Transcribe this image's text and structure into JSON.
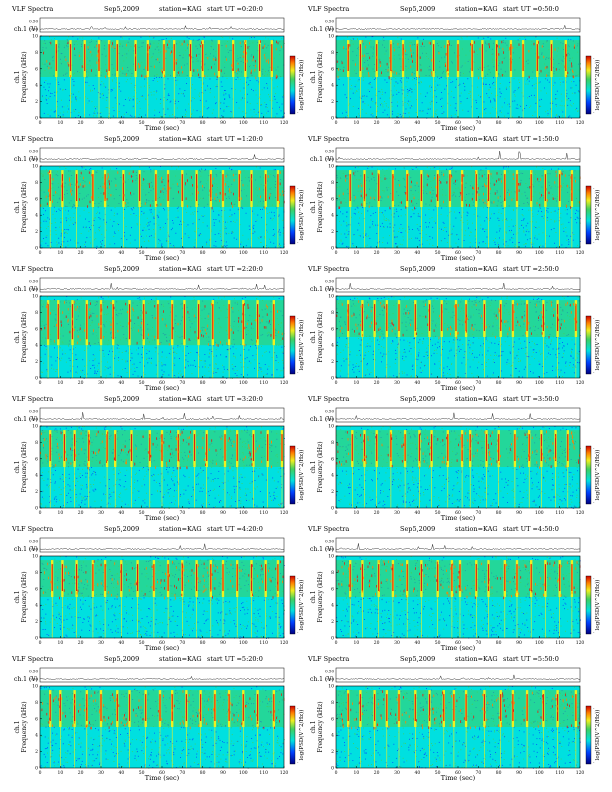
{
  "chart_data": [
    {
      "type": "heatmap",
      "title": "VLF Spectra",
      "date": "Sep5,2009",
      "station": "station=KAG",
      "start": "start UT =0:20:0",
      "channel_label": "ch.1",
      "wave_ylabel": "(V)",
      "wave_ticks": [
        "0.00",
        "0.50"
      ],
      "ylabel": "Frequency (kHz)",
      "xlabel": "Time (sec)",
      "xlim": [
        0,
        120
      ],
      "ylim": [
        0,
        10
      ],
      "xticks": [
        0,
        10,
        20,
        30,
        40,
        50,
        60,
        70,
        80,
        90,
        100,
        110,
        120
      ],
      "yticks": [
        0,
        2,
        4,
        6,
        8,
        10
      ],
      "colorbar_label": "log(PSD(V^2/Hz))",
      "colorbar_ticks": [
        "-",
        "-"
      ],
      "active_band_khz": [
        5,
        9.5
      ],
      "bursts": [
        8,
        15,
        22,
        29,
        34,
        38,
        47,
        53,
        61,
        66,
        74,
        80,
        88,
        95,
        101,
        108,
        114
      ]
    },
    {
      "type": "heatmap",
      "title": "VLF Spectra",
      "date": "Sep5,2009",
      "station": "station=KAG",
      "start": "start UT =0:50:0",
      "channel_label": "ch.1",
      "wave_ylabel": "(V)",
      "wave_ticks": [
        "0.00",
        "0.50"
      ],
      "ylabel": "Frequency (kHz)",
      "xlabel": "Time (sec)",
      "xlim": [
        0,
        120
      ],
      "ylim": [
        0,
        10
      ],
      "xticks": [
        0,
        10,
        20,
        30,
        40,
        50,
        60,
        70,
        80,
        90,
        100,
        110,
        120
      ],
      "yticks": [
        0,
        2,
        4,
        6,
        8,
        10
      ],
      "colorbar_label": "log(PSD(V^2/Hz))",
      "colorbar_ticks": [
        "-",
        "-"
      ],
      "active_band_khz": [
        5,
        9.5
      ],
      "bursts": [
        6,
        12,
        20,
        27,
        33,
        40,
        48,
        55,
        60,
        67,
        72,
        79,
        86,
        92,
        99,
        106,
        113
      ]
    },
    {
      "type": "heatmap",
      "title": "VLF Spectra",
      "date": "Sep5,2009",
      "station": "station=KAG",
      "start": "start UT =1:20:0",
      "channel_label": "ch.1",
      "wave_ylabel": "(V)",
      "wave_ticks": [
        "0.00",
        "0.50"
      ],
      "ylabel": "Frequency (kHz)",
      "xlabel": "Time (sec)",
      "xlim": [
        0,
        120
      ],
      "ylim": [
        0,
        10
      ],
      "xticks": [
        0,
        10,
        20,
        30,
        40,
        50,
        60,
        70,
        80,
        90,
        100,
        110,
        120
      ],
      "yticks": [
        0,
        2,
        4,
        6,
        8,
        10
      ],
      "colorbar_label": "log(PSD(V^2/Hz))",
      "colorbar_ticks": [
        "-",
        "-"
      ],
      "active_band_khz": [
        5,
        9.5
      ],
      "bursts": [
        5,
        11,
        18,
        26,
        32,
        41,
        49,
        57,
        63,
        70,
        77,
        84,
        90,
        98,
        104,
        111,
        117
      ]
    },
    {
      "type": "heatmap",
      "title": "VLF Spectra",
      "date": "Sep5,2009",
      "station": "station=KAG",
      "start": "start UT =1:50:0",
      "channel_label": "ch.1",
      "wave_ylabel": "(V)",
      "wave_ticks": [
        "0.00",
        "0.50"
      ],
      "ylabel": "Frequency (kHz)",
      "xlabel": "Time (sec)",
      "xlim": [
        0,
        120
      ],
      "ylim": [
        0,
        10
      ],
      "xticks": [
        0,
        10,
        20,
        30,
        40,
        50,
        60,
        70,
        80,
        90,
        100,
        110,
        120
      ],
      "yticks": [
        0,
        2,
        4,
        6,
        8,
        10
      ],
      "colorbar_label": "log(PSD(V^2/Hz))",
      "colorbar_ticks": [
        "-",
        "-"
      ],
      "active_band_khz": [
        5,
        9.5
      ],
      "bursts": [
        7,
        14,
        21,
        28,
        35,
        42,
        50,
        56,
        62,
        69,
        75,
        83,
        89,
        96,
        103,
        110,
        116
      ]
    },
    {
      "type": "heatmap",
      "title": "VLF Spectra",
      "date": "Sep5,2009",
      "station": "station=KAG",
      "start": "start UT =2:20:0",
      "channel_label": "ch.1",
      "wave_ylabel": "(V)",
      "wave_ticks": [
        "0.00",
        "0.50"
      ],
      "ylabel": "Frequency (kHz)",
      "xlabel": "Time (sec)",
      "xlim": [
        0,
        120
      ],
      "ylim": [
        0,
        10
      ],
      "xticks": [
        0,
        10,
        20,
        30,
        40,
        50,
        60,
        70,
        80,
        90,
        100,
        110,
        120
      ],
      "yticks": [
        0,
        2,
        4,
        6,
        8,
        10
      ],
      "colorbar_label": "log(PSD(V^2/Hz))",
      "colorbar_ticks": [
        "-",
        "-"
      ],
      "active_band_khz": [
        4,
        9.5
      ],
      "bursts": [
        4,
        9,
        16,
        23,
        30,
        36,
        44,
        51,
        58,
        65,
        71,
        78,
        85,
        93,
        100,
        107,
        115
      ]
    },
    {
      "type": "heatmap",
      "title": "VLF Spectra",
      "date": "Sep5,2009",
      "station": "station=KAG",
      "start": "start UT =2:50:0",
      "channel_label": "ch.1",
      "wave_ylabel": "(V)",
      "wave_ticks": [
        "0.00",
        "0.50"
      ],
      "ylabel": "Frequency (kHz)",
      "xlabel": "Time (sec)",
      "xlim": [
        0,
        120
      ],
      "ylim": [
        0,
        10
      ],
      "xticks": [
        0,
        10,
        20,
        30,
        40,
        50,
        60,
        70,
        80,
        90,
        100,
        110,
        120
      ],
      "yticks": [
        0,
        2,
        4,
        6,
        8,
        10
      ],
      "colorbar_label": "log(PSD(V^2/Hz))",
      "colorbar_ticks": [
        "-",
        "-"
      ],
      "active_band_khz": [
        5,
        9.5
      ],
      "bursts": [
        6,
        13,
        19,
        25,
        31,
        39,
        46,
        52,
        59,
        64,
        73,
        81,
        87,
        94,
        102,
        109,
        118
      ]
    },
    {
      "type": "heatmap",
      "title": "VLF Spectra",
      "date": "Sep5,2009",
      "station": "station=KAG",
      "start": "start UT =3:20:0",
      "channel_label": "ch.1",
      "wave_ylabel": "(V)",
      "wave_ticks": [
        "0.00",
        "0.50"
      ],
      "ylabel": "Frequency (kHz)",
      "xlabel": "Time (sec)",
      "xlim": [
        0,
        120
      ],
      "ylim": [
        0,
        10
      ],
      "xticks": [
        0,
        10,
        20,
        30,
        40,
        50,
        60,
        70,
        80,
        90,
        100,
        110,
        120
      ],
      "yticks": [
        0,
        2,
        4,
        6,
        8,
        10
      ],
      "colorbar_label": "log(PSD(V^2/Hz))",
      "colorbar_ticks": [
        "-",
        "-"
      ],
      "active_band_khz": [
        5,
        9.5
      ],
      "bursts": [
        5,
        12,
        17,
        24,
        33,
        37,
        45,
        54,
        60,
        68,
        76,
        82,
        91,
        97,
        105,
        112,
        119
      ]
    },
    {
      "type": "heatmap",
      "title": "VLF Spectra",
      "date": "Sep5,2009",
      "station": "station=KAG",
      "start": "start UT =3:50:0",
      "channel_label": "ch.1",
      "wave_ylabel": "(V)",
      "wave_ticks": [
        "0.00",
        "0.50"
      ],
      "ylabel": "Frequency (kHz)",
      "xlabel": "Time (sec)",
      "xlim": [
        0,
        120
      ],
      "ylim": [
        0,
        10
      ],
      "xticks": [
        0,
        10,
        20,
        30,
        40,
        50,
        60,
        70,
        80,
        90,
        100,
        110,
        120
      ],
      "yticks": [
        0,
        2,
        4,
        6,
        8,
        10
      ],
      "colorbar_label": "log(PSD(V^2/Hz))",
      "colorbar_ticks": [
        "-",
        "-"
      ],
      "active_band_khz": [
        5,
        9.5
      ],
      "bursts": [
        8,
        14,
        20,
        27,
        34,
        41,
        47,
        55,
        62,
        66,
        74,
        80,
        88,
        95,
        101,
        108,
        114
      ]
    },
    {
      "type": "heatmap",
      "title": "VLF Spectra",
      "date": "Sep5,2009",
      "station": "station=KAG",
      "start": "start UT =4:20:0",
      "channel_label": "ch.1",
      "wave_ylabel": "(V)",
      "wave_ticks": [
        "0.00",
        "0.50"
      ],
      "ylabel": "Frequency (kHz)",
      "xlabel": "Time (sec)",
      "xlim": [
        0,
        120
      ],
      "ylim": [
        0,
        10
      ],
      "xticks": [
        0,
        10,
        20,
        30,
        40,
        50,
        60,
        70,
        80,
        90,
        100,
        110,
        120
      ],
      "yticks": [
        0,
        2,
        4,
        6,
        8,
        10
      ],
      "colorbar_label": "log(PSD(V^2/Hz))",
      "colorbar_ticks": [
        "-",
        "-"
      ],
      "active_band_khz": [
        5,
        9.5
      ],
      "bursts": [
        6,
        11,
        18,
        26,
        32,
        40,
        48,
        56,
        63,
        70,
        77,
        84,
        90,
        97,
        104,
        111,
        117
      ]
    },
    {
      "type": "heatmap",
      "title": "VLF Spectra",
      "date": "Sep5,2009",
      "station": "station=KAG",
      "start": "start UT =4:50:0",
      "channel_label": "ch.1",
      "wave_ylabel": "(V)",
      "wave_ticks": [
        "0.00",
        "0.50"
      ],
      "ylabel": "Frequency (kHz)",
      "xlabel": "Time (sec)",
      "xlim": [
        0,
        120
      ],
      "ylim": [
        0,
        10
      ],
      "xticks": [
        0,
        10,
        20,
        30,
        40,
        50,
        60,
        70,
        80,
        90,
        100,
        110,
        120
      ],
      "yticks": [
        0,
        2,
        4,
        6,
        8,
        10
      ],
      "colorbar_label": "log(PSD(V^2/Hz))",
      "colorbar_ticks": [
        "-",
        "-"
      ],
      "active_band_khz": [
        5,
        9.5
      ],
      "bursts": [
        7,
        13,
        21,
        28,
        35,
        42,
        50,
        57,
        61,
        69,
        75,
        83,
        89,
        96,
        103,
        110,
        116
      ]
    },
    {
      "type": "heatmap",
      "title": "VLF Spectra",
      "date": "Sep5,2009",
      "station": "station=KAG",
      "start": "start UT =5:20:0",
      "channel_label": "ch.1",
      "wave_ylabel": "(V)",
      "wave_ticks": [
        "0.00",
        "0.50"
      ],
      "ylabel": "Frequency (kHz)",
      "xlabel": "Time (sec)",
      "xlim": [
        0,
        120
      ],
      "ylim": [
        0,
        10
      ],
      "xticks": [
        0,
        10,
        20,
        30,
        40,
        50,
        60,
        70,
        80,
        90,
        100,
        110,
        120
      ],
      "yticks": [
        0,
        2,
        4,
        6,
        8,
        10
      ],
      "colorbar_label": "log(PSD(V^2/Hz))",
      "colorbar_ticks": [
        "-",
        "-"
      ],
      "active_band_khz": [
        5,
        9.5
      ],
      "bursts": [
        5,
        10,
        17,
        23,
        30,
        38,
        44,
        52,
        59,
        65,
        72,
        79,
        86,
        93,
        100,
        107,
        115
      ]
    },
    {
      "type": "heatmap",
      "title": "VLF Spectra",
      "date": "Sep5,2009",
      "station": "station=KAG",
      "start": "start UT =5:50:0",
      "channel_label": "ch.1",
      "wave_ylabel": "(V)",
      "wave_ticks": [
        "0.00",
        "0.50"
      ],
      "ylabel": "Frequency (kHz)",
      "xlabel": "Time (sec)",
      "xlim": [
        0,
        120
      ],
      "ylim": [
        0,
        10
      ],
      "xticks": [
        0,
        10,
        20,
        30,
        40,
        50,
        60,
        70,
        80,
        90,
        100,
        110,
        120
      ],
      "yticks": [
        0,
        2,
        4,
        6,
        8,
        10
      ],
      "colorbar_label": "log(PSD(V^2/Hz))",
      "colorbar_ticks": [
        "-",
        "-"
      ],
      "active_band_khz": [
        5,
        9.5
      ],
      "bursts": [
        6,
        12,
        19,
        25,
        31,
        39,
        46,
        53,
        58,
        64,
        73,
        81,
        87,
        94,
        102,
        109,
        118
      ]
    }
  ],
  "colors": {
    "background": "#00e0e0",
    "noise_green": "#40d060",
    "noise_blue": "#0050ff",
    "band_yellow": "#f0f020",
    "burst_red": "#e02010",
    "burst_orange": "#ff8000",
    "axis": "#000000"
  }
}
